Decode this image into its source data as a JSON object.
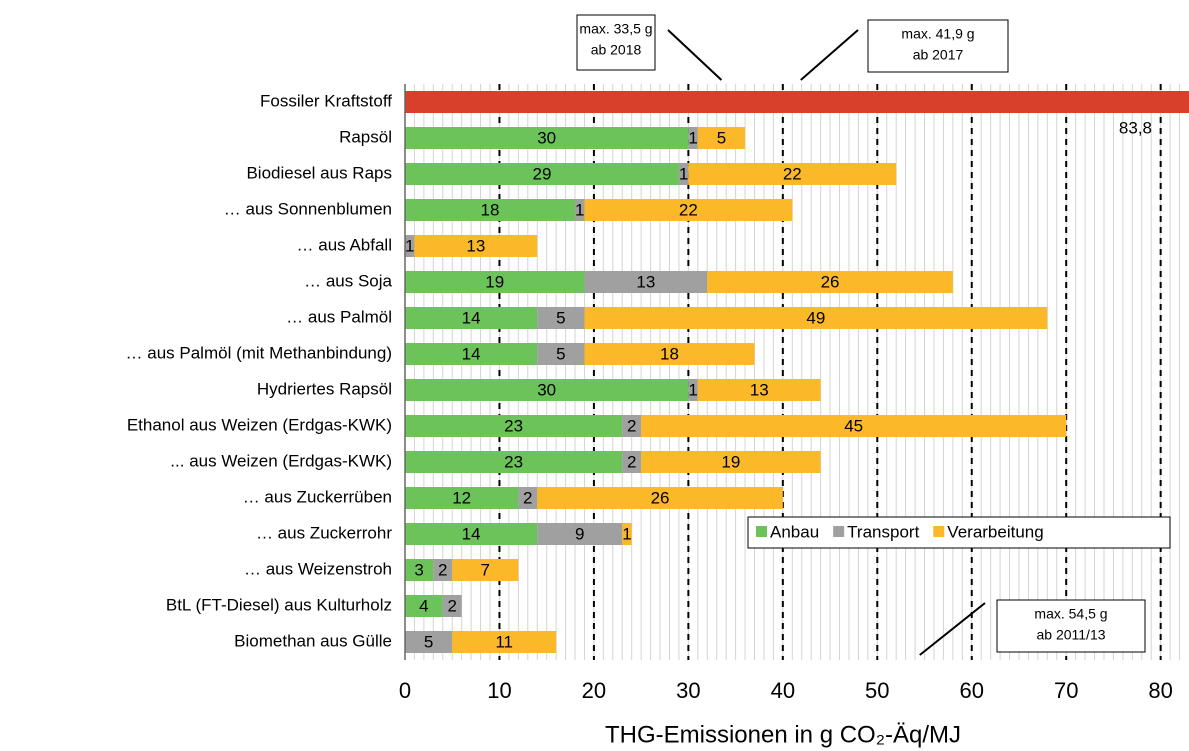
{
  "chart_data": {
    "type": "stacked-bar-horizontal",
    "categories": [
      "Fossiler Kraftstoff",
      "Rapsöl",
      "Biodiesel aus Raps",
      "… aus Sonnenblumen",
      "… aus Abfall",
      "… aus Soja",
      "… aus Palmöl",
      "… aus Palmöl (mit Methanbindung)",
      "Hydriertes Rapsöl",
      "Ethanol aus Weizen (Erdgas-KWK)",
      "... aus Weizen (Erdgas-KWK)",
      "… aus Zuckerrüben",
      "… aus Zuckerrohr",
      "… aus Weizenstroh",
      "BtL (FT-Diesel) aus Kulturholz",
      "Biomethan aus Gülle"
    ],
    "fossil": {
      "value": 83.8,
      "value_label": "83,8",
      "color": "#d9402b"
    },
    "series": [
      {
        "name": "Anbau",
        "color": "#6cc35a",
        "values": [
          null,
          30,
          29,
          18,
          null,
          19,
          14,
          14,
          30,
          23,
          23,
          12,
          14,
          3,
          4,
          null
        ]
      },
      {
        "name": "Transport",
        "color": "#a0a0a0",
        "values": [
          null,
          1,
          1,
          1,
          1,
          13,
          5,
          5,
          1,
          2,
          2,
          2,
          9,
          2,
          2,
          5
        ]
      },
      {
        "name": "Verarbeitung",
        "color": "#fbb829",
        "values": [
          null,
          5,
          22,
          22,
          13,
          26,
          49,
          18,
          13,
          45,
          19,
          26,
          1,
          7,
          null,
          11
        ]
      }
    ],
    "xlabel": "THG-Emissionen in g CO₂-Äq/MJ",
    "xlim": [
      0,
      83
    ],
    "xticks": [
      0,
      10,
      20,
      30,
      40,
      50,
      60,
      70,
      80
    ],
    "grid": true,
    "minor_grid": true,
    "legend_position": "lower right",
    "annotations": [
      {
        "lines": [
          "max. 33,5 g",
          "ab 2018"
        ],
        "x": 33.5
      },
      {
        "lines": [
          "max. 41,9 g",
          "ab 2017"
        ],
        "x": 41.9
      },
      {
        "lines": [
          "max. 54,5 g",
          "ab 2011/13"
        ],
        "x": 54.5
      }
    ]
  }
}
